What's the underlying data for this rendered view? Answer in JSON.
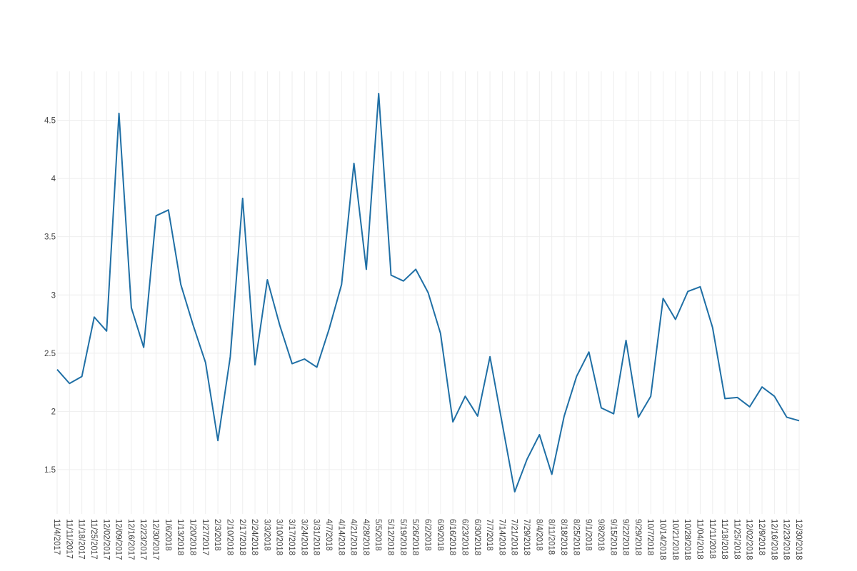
{
  "chart_data": {
    "type": "line",
    "categories": [
      "11/4/2017",
      "11/11/2017",
      "11/18/2017",
      "11/25/2017",
      "12/02/2017",
      "12/09/2017",
      "12/16/2017",
      "12/23/2017",
      "12/30/2017",
      "1/6/2018",
      "1/13/2018",
      "1/20/2018",
      "1/27/2017",
      "2/3/2018",
      "2/10/2018",
      "2/17/2018",
      "2/24/2018",
      "3/3/2018",
      "3/10/2018",
      "3/17/2018",
      "3/24/2018",
      "3/31/2018",
      "4/7/2018",
      "4/14/2018",
      "4/21/2018",
      "4/28/2018",
      "5/5/2018",
      "5/12/2018",
      "5/19/2018",
      "5/26/2018",
      "6/2/2018",
      "6/9/2018",
      "6/16/2018",
      "6/23/2018",
      "6/30/2018",
      "7/7/2018",
      "7/14/2018",
      "7/21/2018",
      "7/29/2018",
      "8/4/2018",
      "8/11/2018",
      "8/18/2018",
      "8/25/2018",
      "9/1/2018",
      "9/8/2018",
      "9/15/2018",
      "9/22/2018",
      "9/29/2018",
      "10/7/2018",
      "10/14/2018",
      "10/21/2018",
      "10/28/2018",
      "11/04/2018",
      "11/11/2018",
      "11/18/2018",
      "11/25/2018",
      "12/02/2018",
      "12/9/2018",
      "12/16/2018",
      "12/23/2018",
      "12/30/2018"
    ],
    "values": [
      2.36,
      2.24,
      2.3,
      2.81,
      2.69,
      4.56,
      2.89,
      2.55,
      3.68,
      3.73,
      3.09,
      2.74,
      2.42,
      1.75,
      2.47,
      3.83,
      2.4,
      3.13,
      2.74,
      2.41,
      2.45,
      2.38,
      2.71,
      3.09,
      4.13,
      3.22,
      4.73,
      3.17,
      3.12,
      3.22,
      3.02,
      2.67,
      1.91,
      2.13,
      1.96,
      2.47,
      1.89,
      1.31,
      1.59,
      1.8,
      1.46,
      1.96,
      2.3,
      2.51,
      2.03,
      1.98,
      2.61,
      1.95,
      2.13,
      2.97,
      2.79,
      3.03,
      3.07,
      2.72,
      2.11,
      2.12,
      2.04,
      2.21,
      2.13,
      1.95,
      1.92
    ],
    "color": "#1f6fa5",
    "ylim": [
      1.12,
      4.92
    ],
    "yticks": [
      1.5,
      2,
      2.5,
      3,
      3.5,
      4,
      4.5
    ],
    "grid": true
  }
}
